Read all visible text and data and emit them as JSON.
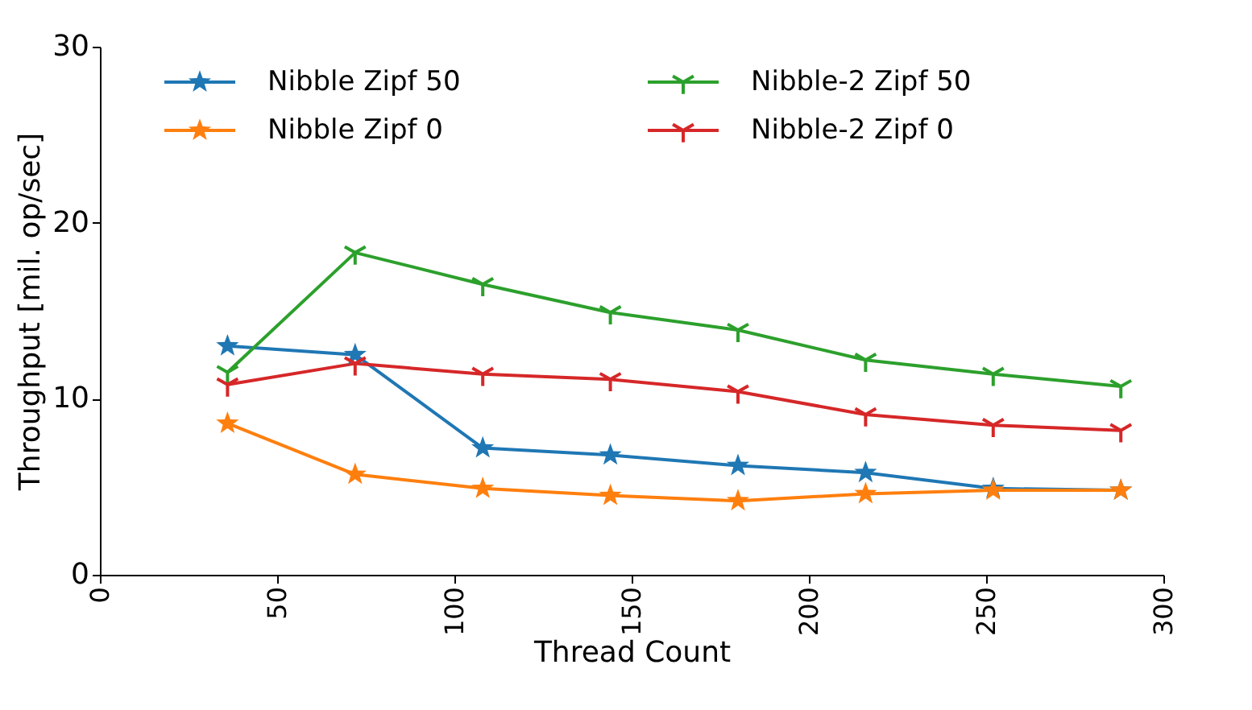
{
  "chart_data": {
    "type": "line",
    "xlabel": "Thread Count",
    "ylabel": "Throughput [mil. op/sec]",
    "x": [
      36,
      72,
      108,
      144,
      180,
      216,
      252,
      288
    ],
    "series": [
      {
        "name": "Nibble Zipf 50",
        "color": "#1f77b4",
        "marker": "star",
        "values": [
          13.0,
          12.5,
          7.2,
          6.8,
          6.2,
          5.8,
          4.9,
          4.8
        ]
      },
      {
        "name": "Nibble Zipf 0",
        "color": "#ff7f0e",
        "marker": "star",
        "values": [
          8.6,
          5.7,
          4.9,
          4.5,
          4.2,
          4.6,
          4.8,
          4.8
        ]
      },
      {
        "name": "Nibble-2 Zipf 50",
        "color": "#2ca02c",
        "marker": "cross",
        "values": [
          11.5,
          18.3,
          16.5,
          14.9,
          13.9,
          12.2,
          11.4,
          10.7
        ]
      },
      {
        "name": "Nibble-2 Zipf 0",
        "color": "#d62728",
        "marker": "cross",
        "values": [
          10.8,
          12.0,
          11.4,
          11.1,
          10.4,
          9.1,
          8.5,
          8.2
        ]
      }
    ],
    "xlim": [
      0,
      300
    ],
    "xticks": [
      0,
      50,
      100,
      150,
      200,
      250,
      300
    ],
    "ylim": [
      0,
      30
    ],
    "yticks": [
      0,
      10,
      20,
      30
    ],
    "grid": false,
    "legend": "top left",
    "line_style": "solid"
  }
}
